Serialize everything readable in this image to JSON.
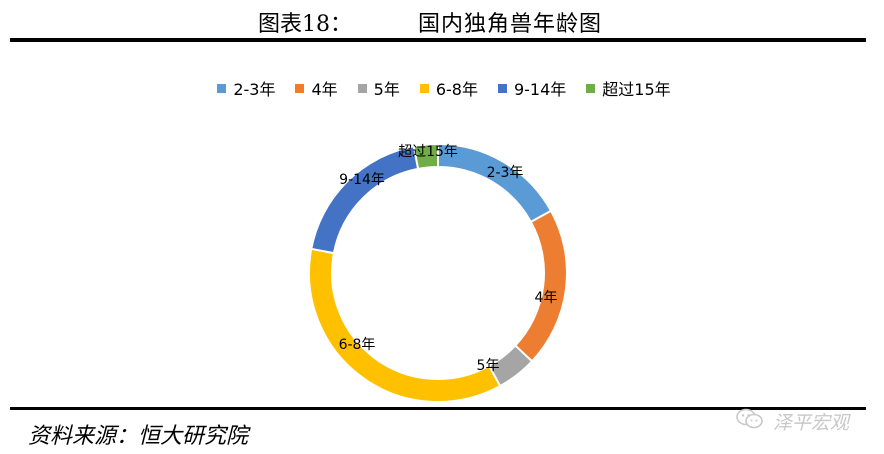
{
  "header": {
    "figure_label": "图表18：",
    "title": "国内独角兽年龄图"
  },
  "source": "资料来源：恒大研究院",
  "watermark": {
    "text": "泽平宏观",
    "icon": "wechat-icon"
  },
  "chart_data": {
    "type": "pie",
    "title": "",
    "categories": [
      "2-3年",
      "4年",
      "5年",
      "6-8年",
      "9-14年",
      "超过15年"
    ],
    "values": [
      17,
      20,
      5,
      36,
      19,
      3
    ],
    "colors": [
      "#5B9BD5",
      "#ED7D31",
      "#A5A5A5",
      "#FFC000",
      "#4472C4",
      "#70AD47"
    ],
    "data_labels": [
      "2-3年",
      "4年",
      "5年",
      "6-8年",
      "9-14年",
      "超过15年"
    ],
    "legend_position": "top",
    "donut": true
  }
}
